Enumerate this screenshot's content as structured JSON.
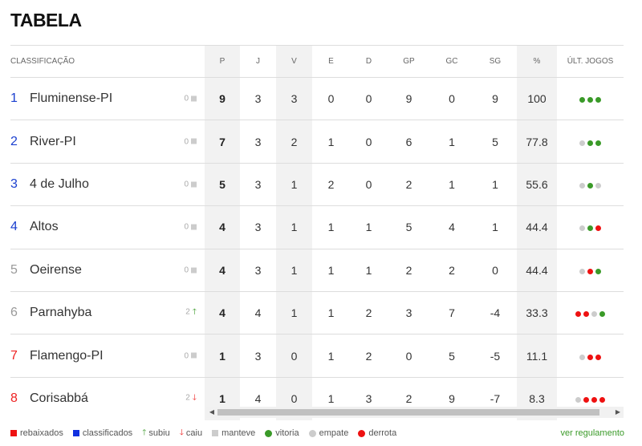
{
  "page": {
    "title": "TABELA"
  },
  "table": {
    "headers": {
      "classificacao": "CLASSIFICAÇÃO",
      "p": "P",
      "j": "J",
      "v": "V",
      "e": "E",
      "d": "D",
      "gp": "GP",
      "gc": "GC",
      "sg": "SG",
      "pct": "%",
      "ult": "ÚLT. JOGOS"
    },
    "rows": [
      {
        "pos": "1",
        "pos_color": "blue",
        "team": "Fluminense-PI",
        "var": "0",
        "var_type": "same",
        "p": "9",
        "j": "3",
        "v": "3",
        "e": "0",
        "d": "0",
        "gp": "9",
        "gc": "0",
        "sg": "9",
        "pct": "100",
        "last": [
          "vitoria",
          "vitoria",
          "vitoria"
        ]
      },
      {
        "pos": "2",
        "pos_color": "blue",
        "team": "River-PI",
        "var": "0",
        "var_type": "same",
        "p": "7",
        "j": "3",
        "v": "2",
        "e": "1",
        "d": "0",
        "gp": "6",
        "gc": "1",
        "sg": "5",
        "pct": "77.8",
        "last": [
          "empate",
          "vitoria",
          "vitoria"
        ]
      },
      {
        "pos": "3",
        "pos_color": "blue",
        "team": "4 de Julho",
        "var": "0",
        "var_type": "same",
        "p": "5",
        "j": "3",
        "v": "1",
        "e": "2",
        "d": "0",
        "gp": "2",
        "gc": "1",
        "sg": "1",
        "pct": "55.6",
        "last": [
          "empate",
          "vitoria",
          "empate"
        ]
      },
      {
        "pos": "4",
        "pos_color": "blue",
        "team": "Altos",
        "var": "0",
        "var_type": "same",
        "p": "4",
        "j": "3",
        "v": "1",
        "e": "1",
        "d": "1",
        "gp": "5",
        "gc": "4",
        "sg": "1",
        "pct": "44.4",
        "last": [
          "empate",
          "vitoria",
          "derrota"
        ]
      },
      {
        "pos": "5",
        "pos_color": "gray",
        "team": "Oeirense",
        "var": "0",
        "var_type": "same",
        "p": "4",
        "j": "3",
        "v": "1",
        "e": "1",
        "d": "1",
        "gp": "2",
        "gc": "2",
        "sg": "0",
        "pct": "44.4",
        "last": [
          "empate",
          "derrota",
          "vitoria"
        ]
      },
      {
        "pos": "6",
        "pos_color": "gray",
        "team": "Parnahyba",
        "var": "2",
        "var_type": "up",
        "p": "4",
        "j": "4",
        "v": "1",
        "e": "1",
        "d": "2",
        "gp": "3",
        "gc": "7",
        "sg": "-4",
        "pct": "33.3",
        "last": [
          "derrota",
          "derrota",
          "empate",
          "vitoria"
        ]
      },
      {
        "pos": "7",
        "pos_color": "red",
        "team": "Flamengo-PI",
        "var": "0",
        "var_type": "same",
        "p": "1",
        "j": "3",
        "v": "0",
        "e": "1",
        "d": "2",
        "gp": "0",
        "gc": "5",
        "sg": "-5",
        "pct": "11.1",
        "last": [
          "empate",
          "derrota",
          "derrota"
        ]
      },
      {
        "pos": "8",
        "pos_color": "red",
        "team": "Corisabbá",
        "var": "2",
        "var_type": "down",
        "p": "1",
        "j": "4",
        "v": "0",
        "e": "1",
        "d": "3",
        "gp": "2",
        "gc": "9",
        "sg": "-7",
        "pct": "8.3",
        "last": [
          "empate",
          "derrota",
          "derrota",
          "derrota"
        ]
      }
    ]
  },
  "legend": {
    "rebaixados": "rebaixados",
    "classificados": "classificados",
    "subiu": "subiu",
    "caiu": "caiu",
    "manteve": "manteve",
    "vitoria": "vitoria",
    "empate": "empate",
    "derrota": "derrota",
    "rules_link": "ver regulamento"
  },
  "colors": {
    "vitoria": "#3a9a28",
    "empate": "#cccccc",
    "derrota": "#ee1111",
    "classificados": "#1030e0",
    "rebaixados": "#ee1111"
  },
  "icons": {
    "subiu": "arrow-up-icon",
    "caiu": "arrow-down-icon",
    "manteve": "square-icon",
    "scroll_left": "triangle-left-icon",
    "scroll_right": "triangle-right-icon"
  }
}
